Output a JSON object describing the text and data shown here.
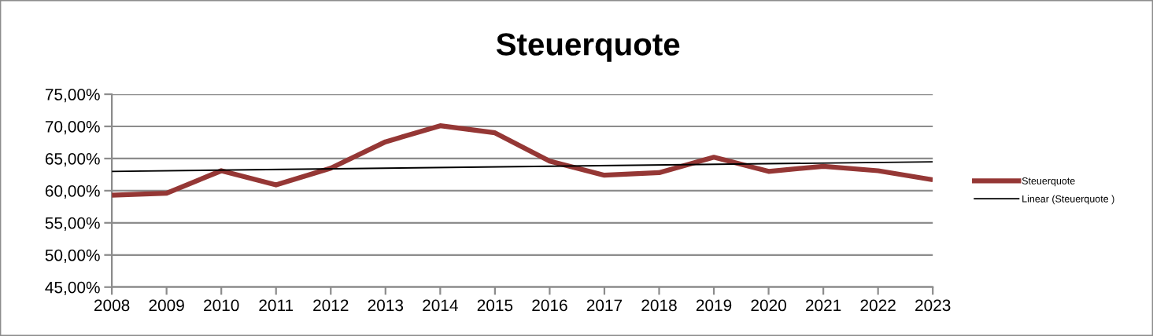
{
  "chart_data": {
    "type": "line",
    "title": "Steuerquote",
    "xlim": [
      2008,
      2023
    ],
    "xticks": [
      2008,
      2009,
      2010,
      2011,
      2012,
      2013,
      2014,
      2015,
      2016,
      2017,
      2018,
      2019,
      2020,
      2021,
      2022,
      2023
    ],
    "ylim": [
      45,
      75
    ],
    "yticks": [
      {
        "value": 45,
        "label": "45,00%"
      },
      {
        "value": 50,
        "label": "50,00%"
      },
      {
        "value": 55,
        "label": "55,00%"
      },
      {
        "value": 60,
        "label": "60,00%"
      },
      {
        "value": 65,
        "label": "65,00%"
      },
      {
        "value": 70,
        "label": "70,00%"
      },
      {
        "value": 75,
        "label": "75,00%"
      }
    ],
    "grid": "y",
    "legend": "right",
    "series": [
      {
        "name": "Steuerquote",
        "color": "#953735",
        "x": [
          2008,
          2009,
          2010,
          2011,
          2012,
          2013,
          2014,
          2015,
          2016,
          2017,
          2018,
          2019,
          2020,
          2021,
          2022,
          2023
        ],
        "values": [
          59.3,
          59.6,
          63.1,
          60.9,
          63.5,
          67.6,
          70.1,
          69.0,
          64.6,
          62.4,
          62.8,
          65.2,
          63.0,
          63.8,
          63.1,
          61.7
        ]
      },
      {
        "name": "Linear (Steuerquote )",
        "color": "#000000",
        "x": [
          2008,
          2023
        ],
        "values": [
          63.0,
          64.5
        ]
      }
    ]
  }
}
